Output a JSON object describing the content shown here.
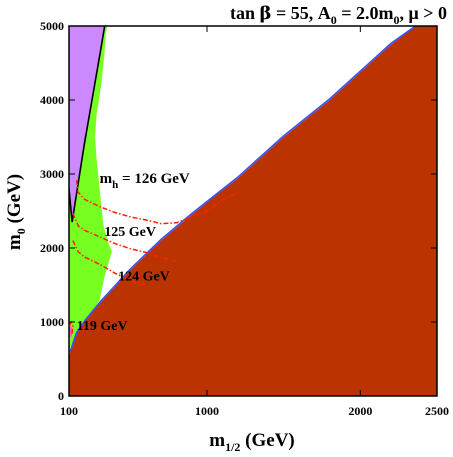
{
  "chart_data": {
    "type": "area",
    "title": "tan β = 55, A0 = 2.0m0, μ > 0",
    "title_parts": {
      "tan": "tan ",
      "beta": "β",
      "eq1": " = 55, A",
      "a_sub": "0",
      "eq2": " = 2.0m",
      "m_sub": "0",
      "mu": ",  μ > 0"
    },
    "xlabel": "m1/2 (GeV)",
    "xlabel_parts": {
      "m": "m",
      "sub": "1/2",
      "unit": " (GeV)"
    },
    "ylabel": "m0 (GeV)",
    "ylabel_parts": {
      "m": "m",
      "sub": "0",
      "unit": " (GeV)"
    },
    "xlim": [
      100,
      2500
    ],
    "ylim": [
      0,
      5000
    ],
    "x_ticks": [
      100,
      1000,
      2000,
      2500
    ],
    "x_tick_labels": [
      "100",
      "1000",
      "2000",
      "2500"
    ],
    "y_ticks": [
      0,
      1000,
      2000,
      3000,
      4000,
      5000
    ],
    "y_tick_labels": [
      "0",
      "1000",
      "2000",
      "3000",
      "4000",
      "5000"
    ],
    "grid": false,
    "regions": [
      {
        "id": "region-stau-lsp",
        "color": "#bb3300",
        "points": [
          [
            100,
            550
          ],
          [
            100,
            0
          ],
          [
            2500,
            0
          ],
          [
            2500,
            5000
          ],
          [
            2360,
            5000
          ],
          [
            2200,
            4750
          ],
          [
            1800,
            4000
          ],
          [
            1500,
            3500
          ],
          [
            1200,
            2940
          ],
          [
            1050,
            2700
          ],
          [
            900,
            2450
          ],
          [
            700,
            2100
          ],
          [
            500,
            1700
          ],
          [
            300,
            1250
          ],
          [
            200,
            1000
          ],
          [
            150,
            850
          ]
        ]
      },
      {
        "id": "region-excluded",
        "color": "#cc88ff",
        "points": [
          [
            100,
            5000
          ],
          [
            100,
            2800
          ],
          [
            120,
            2350
          ],
          [
            200,
            3400
          ],
          [
            300,
            4600
          ],
          [
            333,
            5000
          ]
        ]
      },
      {
        "id": "region-gminus2",
        "color": "#77ff22",
        "points": [
          [
            100,
            2800
          ],
          [
            120,
            2350
          ],
          [
            200,
            3400
          ],
          [
            300,
            4600
          ],
          [
            333,
            5000
          ],
          [
            350,
            5000
          ],
          [
            340,
            4900
          ],
          [
            330,
            4600
          ],
          [
            310,
            4200
          ],
          [
            280,
            3800
          ],
          [
            270,
            3500
          ],
          [
            280,
            3200
          ],
          [
            305,
            2700
          ],
          [
            325,
            2300
          ],
          [
            360,
            2050
          ],
          [
            380,
            1950
          ],
          [
            330,
            1600
          ],
          [
            300,
            1300
          ],
          [
            260,
            1150
          ],
          [
            200,
            1000
          ],
          [
            150,
            850
          ],
          [
            100,
            620
          ]
        ]
      },
      {
        "id": "region-bsgamma-pink",
        "color": "#ff55cc",
        "points": [
          [
            102,
            920
          ],
          [
            112,
            960
          ],
          [
            122,
            880
          ],
          [
            118,
            800
          ],
          [
            106,
            790
          ]
        ]
      }
    ],
    "boundary_lines": [
      {
        "id": "relic-density-strip",
        "color": "#3355ff",
        "points": [
          [
            105,
            590
          ],
          [
            150,
            860
          ],
          [
            200,
            1010
          ],
          [
            300,
            1265
          ],
          [
            500,
            1715
          ],
          [
            700,
            2115
          ],
          [
            900,
            2465
          ],
          [
            1200,
            2955
          ],
          [
            1500,
            3515
          ],
          [
            1800,
            4015
          ],
          [
            2200,
            4765
          ],
          [
            2360,
            5000
          ]
        ]
      },
      {
        "id": "excluded-boundary",
        "color": "#000000",
        "points": [
          [
            100,
            2800
          ],
          [
            120,
            2350
          ],
          [
            200,
            3400
          ],
          [
            300,
            4600
          ],
          [
            333,
            5000
          ]
        ]
      }
    ],
    "contours": [
      {
        "label": "mh = 126 GeV",
        "label_parts": {
          "m": "m",
          "sub": "h",
          "rest": "  = 126 GeV"
        },
        "color": "#ff2200",
        "points": [
          [
            150,
            2920
          ],
          [
            158,
            2760
          ],
          [
            200,
            2660
          ],
          [
            300,
            2560
          ],
          [
            400,
            2480
          ],
          [
            500,
            2420
          ],
          [
            600,
            2380
          ],
          [
            700,
            2330
          ],
          [
            800,
            2340
          ],
          [
            900,
            2420
          ],
          [
            1000,
            2500
          ],
          [
            1100,
            2650
          ],
          [
            1200,
            2750
          ]
        ]
      },
      {
        "label": "125 GeV",
        "color": "#ff2200",
        "points": [
          [
            125,
            2470
          ],
          [
            160,
            2300
          ],
          [
            200,
            2240
          ],
          [
            300,
            2150
          ],
          [
            400,
            2060
          ],
          [
            500,
            1990
          ],
          [
            600,
            1940
          ],
          [
            700,
            1870
          ],
          [
            800,
            1820
          ]
        ]
      },
      {
        "label": "124 GeV",
        "color": "#ff2200",
        "points": [
          [
            125,
            2100
          ],
          [
            160,
            1950
          ],
          [
            200,
            1880
          ],
          [
            300,
            1780
          ],
          [
            400,
            1660
          ],
          [
            500,
            1560
          ],
          [
            600,
            1500
          ]
        ]
      },
      {
        "label": "119 GeV",
        "color": "#ff2200",
        "points": [
          [
            103,
            960
          ],
          [
            115,
            1000
          ],
          [
            125,
            950
          ],
          [
            120,
            850
          ],
          [
            110,
            830
          ]
        ]
      }
    ],
    "contour_labels": [
      {
        "text": "mh = 126 GeV",
        "x": 300,
        "y": 2880
      },
      {
        "text": "125 GeV",
        "x": 330,
        "y": 2160
      },
      {
        "text": "124 GeV",
        "x": 420,
        "y": 1560
      },
      {
        "text": "119 GeV",
        "x": 150,
        "y": 890
      }
    ]
  }
}
